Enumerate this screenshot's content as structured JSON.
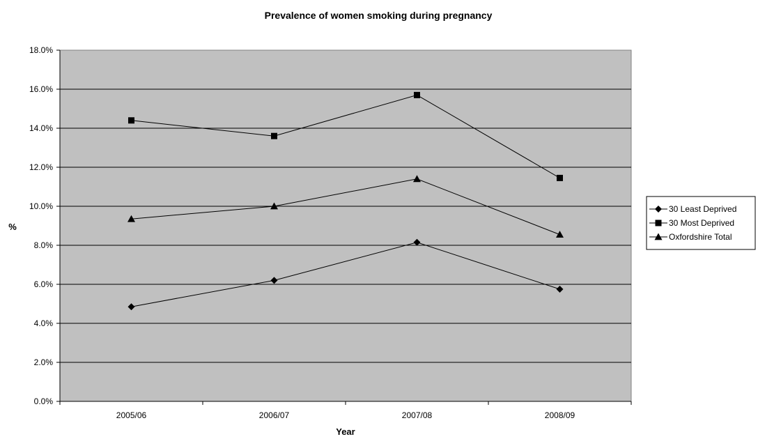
{
  "chart_data": {
    "type": "line",
    "title": "Prevalence of women smoking during pregnancy",
    "xlabel": "Year",
    "ylabel": "%",
    "categories": [
      "2005/06",
      "2006/07",
      "2007/08",
      "2008/09"
    ],
    "ylim": [
      0,
      18
    ],
    "ytick_step": 2,
    "ytick_labels": [
      "0.0%",
      "2.0%",
      "4.0%",
      "6.0%",
      "8.0%",
      "10.0%",
      "12.0%",
      "14.0%",
      "16.0%",
      "18.0%"
    ],
    "grid": true,
    "legend_position": "right",
    "plot_background": "#c0c0c0",
    "series": [
      {
        "name": "30 Least Deprived",
        "marker": "diamond",
        "values": [
          4.85,
          6.2,
          8.15,
          5.75
        ]
      },
      {
        "name": "30 Most Deprived",
        "marker": "square",
        "values": [
          14.4,
          13.6,
          15.7,
          11.45
        ]
      },
      {
        "name": "Oxfordshire Total",
        "marker": "triangle",
        "values": [
          9.35,
          10.0,
          11.4,
          8.55
        ]
      }
    ]
  }
}
